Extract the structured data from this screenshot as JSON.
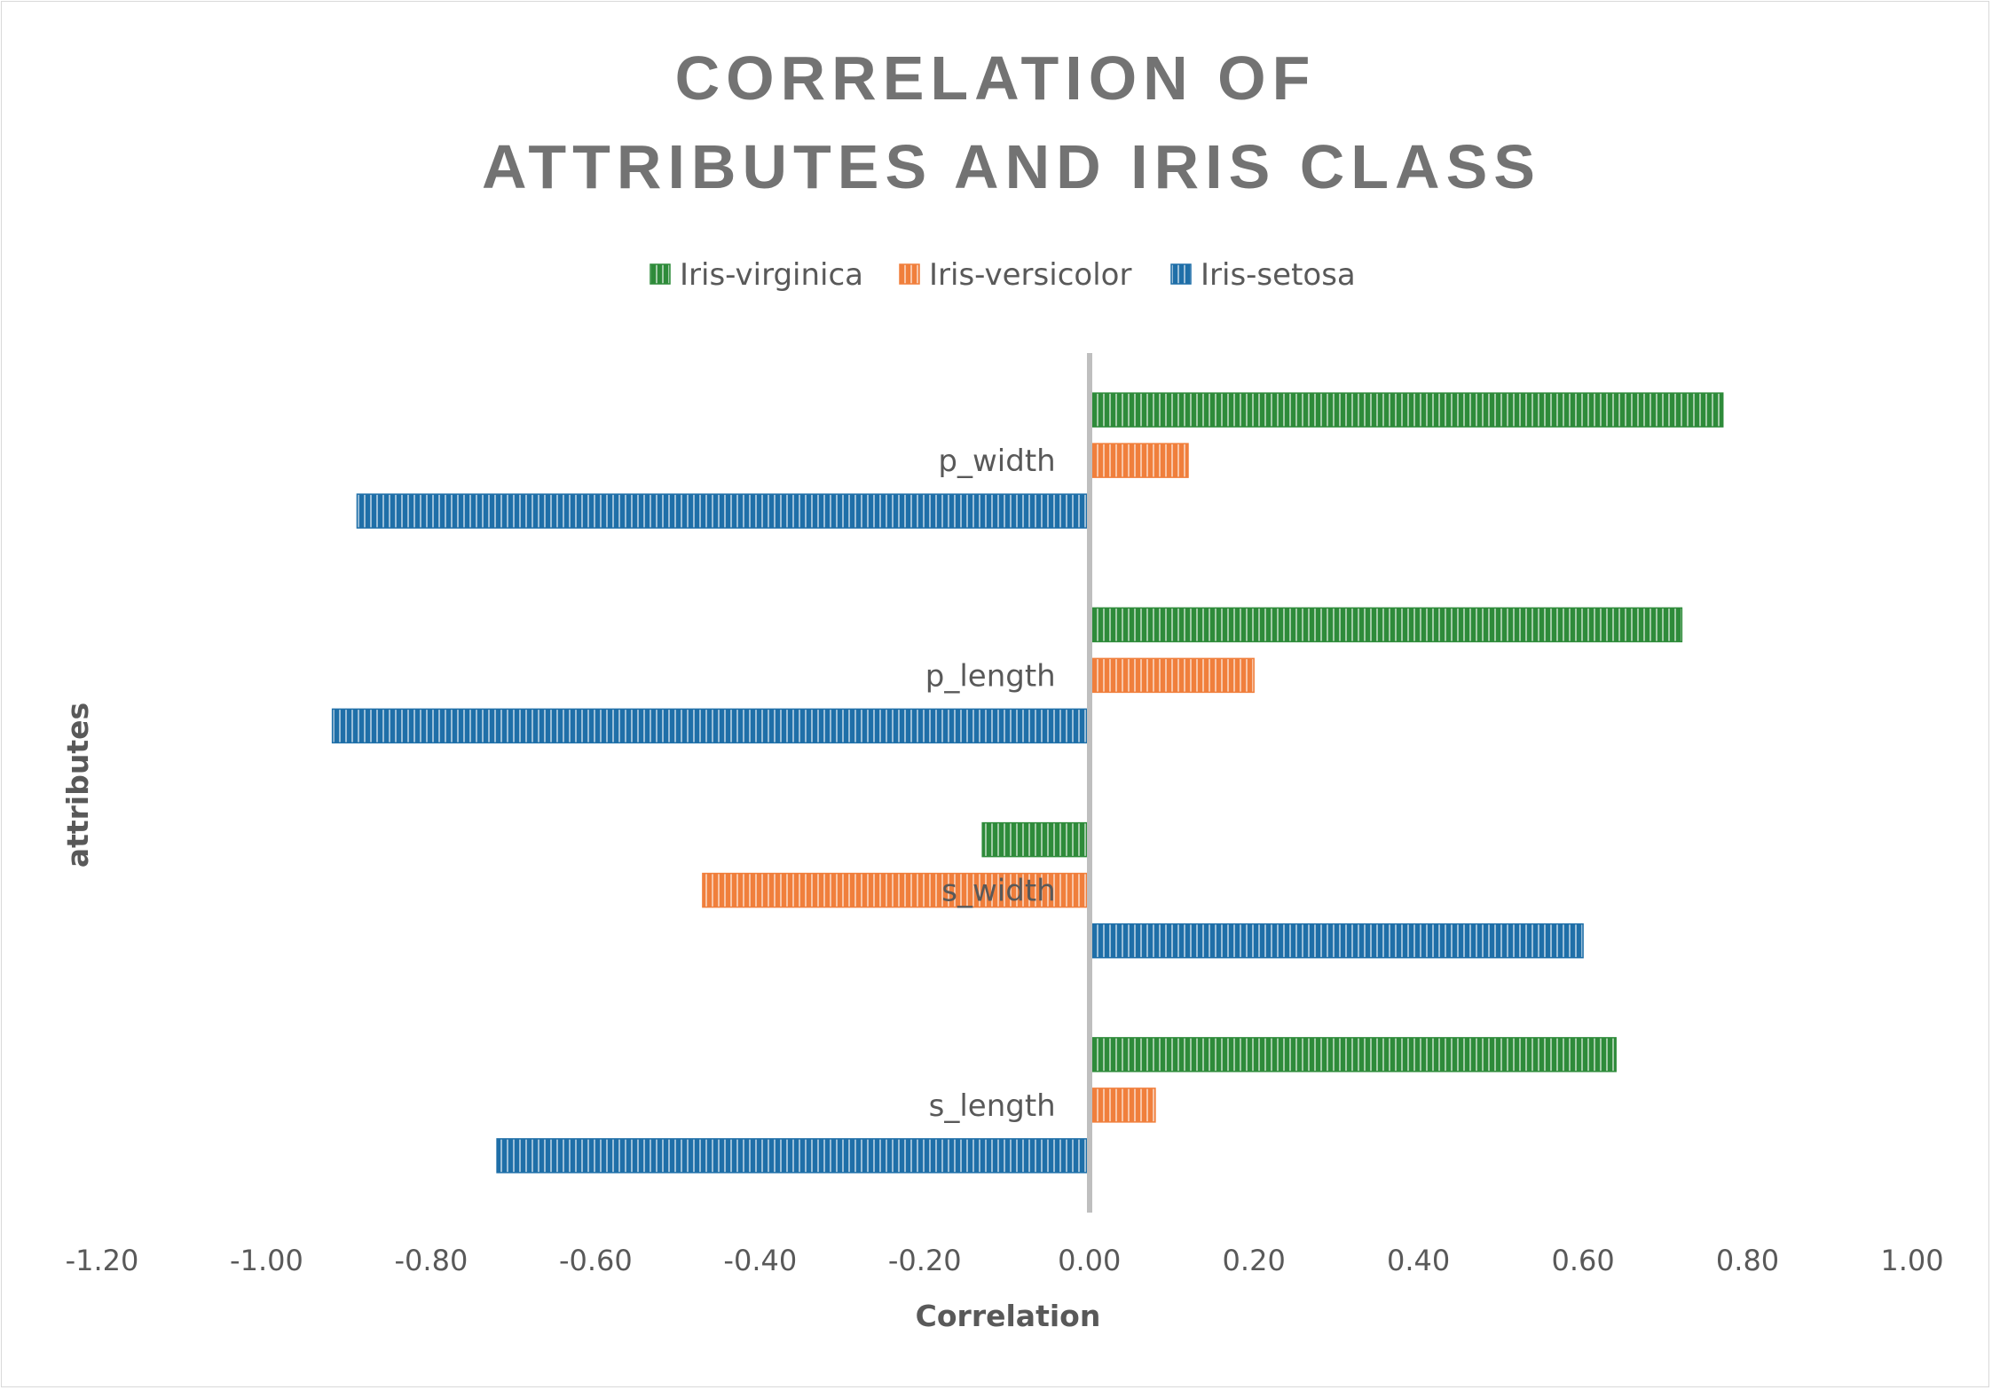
{
  "chart_data": {
    "type": "bar",
    "orientation": "horizontal",
    "title_lines": [
      "CORRELATION OF",
      "ATTRIBUTES AND IRIS CLASS"
    ],
    "xlabel": "Correlation",
    "ylabel": "attributes",
    "xlim": [
      -1.2,
      1.0
    ],
    "x_ticks": [
      "-1.20",
      "-1.00",
      "-0.80",
      "-0.60",
      "-0.40",
      "-0.20",
      "0.00",
      "0.20",
      "0.40",
      "0.60",
      "0.80",
      "1.00"
    ],
    "categories": [
      "s_length",
      "s_width",
      "p_length",
      "p_width"
    ],
    "legend_position": "top",
    "grid": false,
    "series": [
      {
        "name": "Iris-setosa",
        "color": "#1f6fa8",
        "values": [
          -0.72,
          0.6,
          -0.92,
          -0.89
        ]
      },
      {
        "name": "Iris-versicolor",
        "color": "#f07f3c",
        "values": [
          0.08,
          -0.47,
          0.2,
          0.12
        ]
      },
      {
        "name": "Iris-virginica",
        "color": "#2e8b3a",
        "values": [
          0.64,
          -0.13,
          0.72,
          0.77
        ]
      }
    ],
    "legend_order": [
      "Iris-virginica",
      "Iris-versicolor",
      "Iris-setosa"
    ]
  }
}
